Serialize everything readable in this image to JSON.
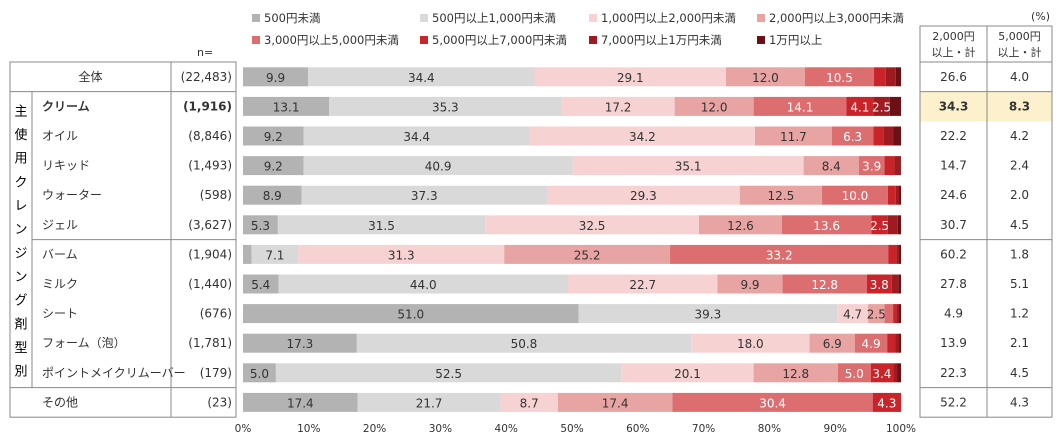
{
  "chart_data": {
    "type": "stacked-bar-100",
    "unit_note": "(%)",
    "n_label": "n=",
    "group_label": "主使用クレンジング剤型別",
    "legend": [
      {
        "name": "500円未満",
        "color": "#b3b3b3"
      },
      {
        "name": "500円以上1,000円未満",
        "color": "#d9d9d9"
      },
      {
        "name": "1,000円以上2,000円未満",
        "color": "#f7d2d2"
      },
      {
        "name": "2,000円以上3,000円未満",
        "color": "#e8a3a3"
      },
      {
        "name": "3,000円以上5,000円未満",
        "color": "#dc6e70"
      },
      {
        "name": "5,000円以上7,000円未満",
        "color": "#c9242a"
      },
      {
        "name": "7,000円以上1万円未満",
        "color": "#9e1b21"
      },
      {
        "name": "1万円以上",
        "color": "#6b1015"
      }
    ],
    "summary_headers": [
      {
        "line1": "2,000円",
        "line2": "以上・計"
      },
      {
        "line1": "5,000円",
        "line2": "以上・計"
      }
    ],
    "x_ticks": [
      "0%",
      "10%",
      "20%",
      "30%",
      "40%",
      "50%",
      "60%",
      "70%",
      "80%",
      "90%",
      "100%"
    ],
    "rows": [
      {
        "label": "全体",
        "n": "(22,483)",
        "values": [
          9.9,
          34.4,
          29.1,
          12.0,
          10.5,
          1.8,
          1.5,
          0.8
        ],
        "labels": [
          "9.9",
          "34.4",
          "29.1",
          "12.0",
          "10.5",
          "",
          "",
          ""
        ],
        "sum2000": "26.6",
        "sum5000": "4.0",
        "highlight": false
      },
      {
        "label": "クリーム",
        "n": "(1,916)",
        "values": [
          13.1,
          35.3,
          17.2,
          12.0,
          14.1,
          4.1,
          2.5,
          1.7
        ],
        "labels": [
          "13.1",
          "35.3",
          "17.2",
          "12.0",
          "14.1",
          "4.1",
          "2.5",
          ""
        ],
        "sum2000": "34.3",
        "sum5000": "8.3",
        "highlight": true
      },
      {
        "label": "オイル",
        "n": "(8,846)",
        "values": [
          9.2,
          34.4,
          34.2,
          11.7,
          6.3,
          1.5,
          1.5,
          1.2
        ],
        "labels": [
          "9.2",
          "34.4",
          "34.2",
          "11.7",
          "6.3",
          "",
          "",
          ""
        ],
        "sum2000": "22.2",
        "sum5000": "4.2",
        "highlight": false
      },
      {
        "label": "リキッド",
        "n": "(1,493)",
        "values": [
          9.2,
          40.9,
          35.1,
          8.4,
          3.9,
          1.5,
          0.9,
          0.1
        ],
        "labels": [
          "9.2",
          "40.9",
          "35.1",
          "8.4",
          "3.9",
          "",
          "",
          ""
        ],
        "sum2000": "14.7",
        "sum5000": "2.4",
        "highlight": false
      },
      {
        "label": "ウォーター",
        "n": "(598)",
        "values": [
          8.9,
          37.3,
          29.3,
          12.5,
          10.0,
          1.2,
          0.5,
          0.3
        ],
        "labels": [
          "8.9",
          "37.3",
          "29.3",
          "12.5",
          "10.0",
          "",
          "",
          ""
        ],
        "sum2000": "24.6",
        "sum5000": "2.0",
        "highlight": false
      },
      {
        "label": "ジェル",
        "n": "(3,627)",
        "values": [
          5.3,
          31.5,
          32.5,
          12.6,
          13.6,
          2.5,
          1.5,
          0.5
        ],
        "labels": [
          "5.3",
          "31.5",
          "32.5",
          "12.6",
          "13.6",
          "2.5",
          "",
          ""
        ],
        "sum2000": "30.7",
        "sum5000": "4.5",
        "highlight": false
      },
      {
        "label": "バーム",
        "n": "(1,904)",
        "values": [
          1.3,
          7.1,
          31.3,
          25.2,
          33.2,
          1.2,
          0.4,
          0.3
        ],
        "labels": [
          "",
          "7.1",
          "31.3",
          "25.2",
          "33.2",
          "",
          "",
          ""
        ],
        "sum2000": "60.2",
        "sum5000": "1.8",
        "highlight": false
      },
      {
        "label": "ミルク",
        "n": "(1,440)",
        "values": [
          5.4,
          44.0,
          22.7,
          9.9,
          12.8,
          3.8,
          1.0,
          0.4
        ],
        "labels": [
          "5.4",
          "44.0",
          "22.7",
          "9.9",
          "12.8",
          "3.8",
          "",
          ""
        ],
        "sum2000": "27.8",
        "sum5000": "5.1",
        "highlight": false
      },
      {
        "label": "シート",
        "n": "(676)",
        "values": [
          51.0,
          39.3,
          4.7,
          2.5,
          1.3,
          0.5,
          0.4,
          0.3
        ],
        "labels": [
          "51.0",
          "39.3",
          "4.7",
          "2.5",
          "",
          "",
          "",
          ""
        ],
        "sum2000": "4.9",
        "sum5000": "1.2",
        "highlight": false
      },
      {
        "label": "フォーム（泡）",
        "n": "(1,781)",
        "values": [
          17.3,
          50.8,
          18.0,
          6.9,
          4.9,
          1.2,
          0.6,
          0.3
        ],
        "labels": [
          "17.3",
          "50.8",
          "18.0",
          "6.9",
          "4.9",
          "",
          "",
          ""
        ],
        "sum2000": "13.9",
        "sum5000": "2.1",
        "highlight": false
      },
      {
        "label": "ポイントメイクリムーバー",
        "n": "(179)",
        "values": [
          5.0,
          52.5,
          20.1,
          12.8,
          5.0,
          3.4,
          0.6,
          0.6
        ],
        "labels": [
          "5.0",
          "52.5",
          "20.1",
          "12.8",
          "5.0",
          "3.4",
          "",
          ""
        ],
        "sum2000": "22.3",
        "sum5000": "4.5",
        "highlight": false
      },
      {
        "label": "その他",
        "n": "(23)",
        "values": [
          17.4,
          21.7,
          8.7,
          17.4,
          30.4,
          4.3,
          0.0,
          0.0
        ],
        "labels": [
          "17.4",
          "21.7",
          "8.7",
          "17.4",
          "30.4",
          "4.3",
          "",
          ""
        ],
        "sum2000": "52.2",
        "sum5000": "4.3",
        "highlight": false
      }
    ]
  }
}
